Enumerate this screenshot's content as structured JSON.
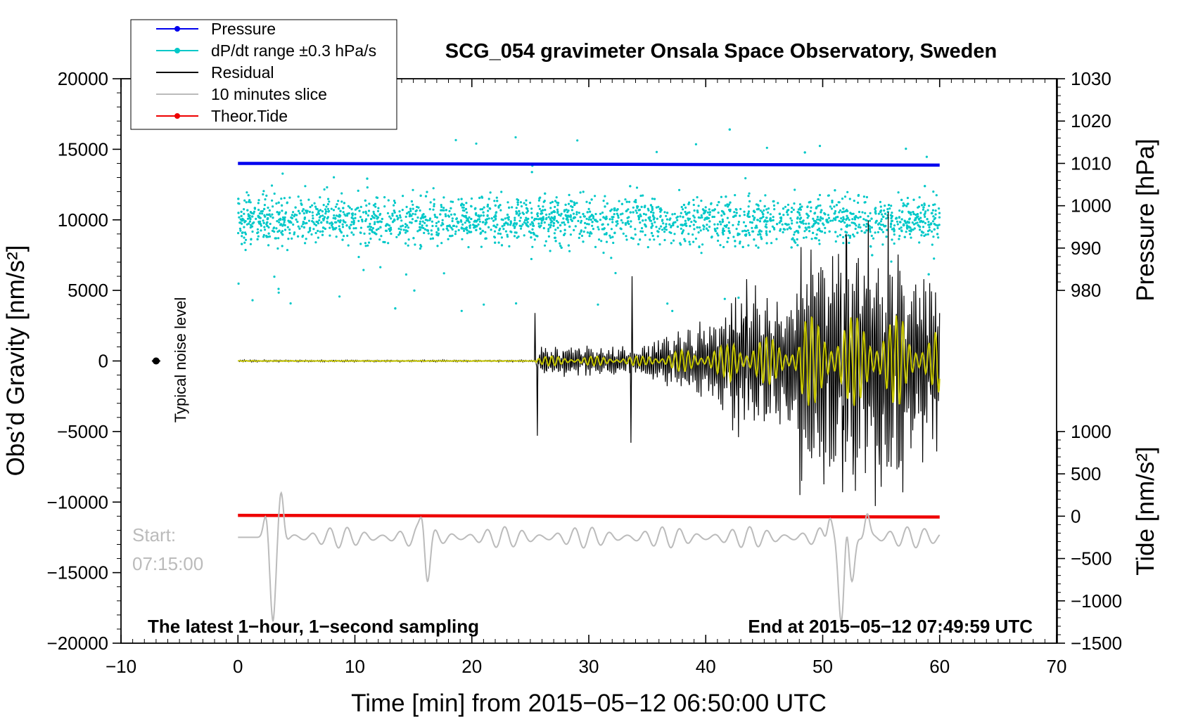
{
  "chart_data": {
    "type": "line",
    "title": "SCG_054 gravimeter Onsala Space Observatory, Sweden",
    "xlabel": "Time [min] from 2015−05−12 06:50:00 UTC",
    "ylabel_left": "Obs’d Gravity [nm/s²]",
    "ylabel_right_top": "Pressure [hPa]",
    "ylabel_right_bottom": "Tide [nm/s²]",
    "xlim": [
      -10,
      70
    ],
    "ylim": [
      -20000,
      20000
    ],
    "pressure_lim": [
      1030,
      980
    ],
    "tide_lim": [
      1000,
      -1500
    ],
    "x_ticks": [
      -10,
      0,
      10,
      20,
      30,
      40,
      50,
      60,
      70
    ],
    "x_tick_labels": [
      "−10",
      "0",
      "10",
      "20",
      "30",
      "40",
      "50",
      "60",
      "70"
    ],
    "y_ticks": [
      20000,
      15000,
      10000,
      5000,
      0,
      -5000,
      -10000,
      -15000,
      -20000
    ],
    "y_tick_labels": [
      "20000",
      "15000",
      "10000",
      "5000",
      "0",
      "−5000",
      "−10000",
      "−15000",
      "−20000"
    ],
    "pressure_ticks": [
      1030,
      1020,
      1010,
      1000,
      990,
      980
    ],
    "pressure_tick_labels": [
      "1030",
      "1020",
      "1010",
      "1000",
      "990",
      "980"
    ],
    "tide_ticks": [
      1000,
      500,
      0,
      -500,
      -1000,
      -1500
    ],
    "tide_tick_labels": [
      "1000",
      "500",
      "0",
      "−500",
      "−1000",
      "−1500"
    ],
    "legend": [
      {
        "label": "Pressure",
        "color": "#0000ee",
        "marker": true
      },
      {
        "label": "dP/dt range ±0.3 hPa/s",
        "color": "#00c8c8",
        "marker": true
      },
      {
        "label": "Residual",
        "color": "#000000",
        "marker": false
      },
      {
        "label": "10 minutes slice",
        "color": "#bbbbbb",
        "marker": false
      },
      {
        "label": "Theor.Tide",
        "color": "#ee0000",
        "marker": true
      }
    ],
    "series": [
      {
        "name": "Pressure",
        "color": "#0000ee",
        "x": [
          0,
          60
        ],
        "y_hpa": [
          1010.0,
          1009.6
        ]
      },
      {
        "name": "Theor.Tide",
        "color": "#ee0000",
        "x": [
          0,
          60
        ],
        "y_tide": [
          10,
          -10
        ]
      },
      {
        "name": "dP/dt range",
        "color": "#00c8c8",
        "center": 10000,
        "spread": 1300,
        "x_range": [
          0,
          60
        ]
      },
      {
        "name": "Residual",
        "color": "#000000",
        "x_range": [
          0,
          60
        ],
        "quiet_until": 25.5
      },
      {
        "name": "Residual (filtered)",
        "color": "#c8c800",
        "x_range": [
          0,
          60
        ]
      },
      {
        "name": "10 minutes slice",
        "color": "#bbbbbb",
        "x_range": [
          0,
          60
        ],
        "baseline": -12500
      }
    ],
    "annotations": {
      "noise_label": "Typical noise level",
      "noise_point": {
        "x": -7,
        "y": 0
      },
      "start_label": "Start:",
      "start_time": "07:15:00",
      "bottom_left": "The latest 1−hour, 1−second sampling",
      "bottom_right": "End at 2015−05−12 07:49:59 UTC"
    }
  }
}
